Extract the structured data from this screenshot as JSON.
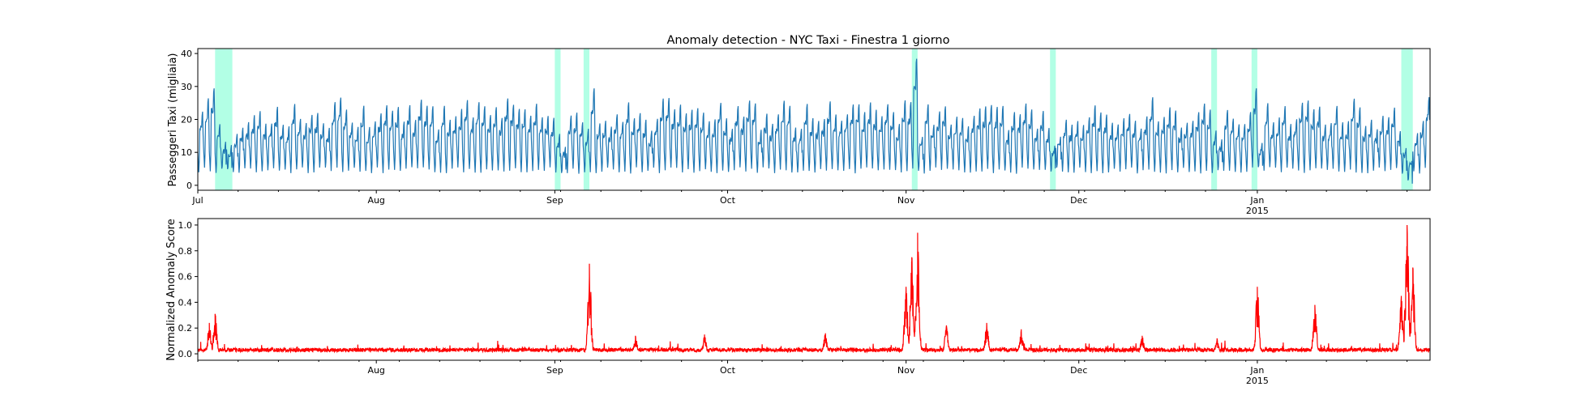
{
  "chart_data": [
    {
      "type": "line",
      "title": "Anomaly detection - NYC Taxi - Finestra 1 giorno",
      "ylabel": "Passeggeri Taxi (migliaia)",
      "xlabel": "",
      "xlim": [
        "2014-07-01",
        "2015-01-31"
      ],
      "ylim": [
        -1.5,
        41.5
      ],
      "yticks": [
        0,
        10,
        20,
        30,
        40
      ],
      "xticks": [
        {
          "date": "2014-07-01",
          "label": "Jul",
          "sub": ""
        },
        {
          "date": "2014-08-01",
          "label": "Aug",
          "sub": ""
        },
        {
          "date": "2014-09-01",
          "label": "Sep",
          "sub": ""
        },
        {
          "date": "2014-10-01",
          "label": "Oct",
          "sub": ""
        },
        {
          "date": "2014-11-01",
          "label": "Nov",
          "sub": ""
        },
        {
          "date": "2014-12-01",
          "label": "Dec",
          "sub": ""
        },
        {
          "date": "2015-01-01",
          "label": "Jan",
          "sub": "2015"
        }
      ],
      "line_color": "#1f77b4",
      "anomaly_color": "#7fffd4",
      "anomaly_windows": [
        [
          "2014-07-04",
          "2014-07-07"
        ],
        [
          "2014-09-01",
          "2014-09-02"
        ],
        [
          "2014-09-06",
          "2014-09-07"
        ],
        [
          "2014-11-02",
          "2014-11-03"
        ],
        [
          "2014-11-26",
          "2014-11-27"
        ],
        [
          "2014-12-24",
          "2014-12-25"
        ],
        [
          "2014-12-31",
          "2015-01-01"
        ],
        [
          "2015-01-26",
          "2015-01-28"
        ]
      ],
      "series": {
        "profile": "daily cycle, low ~2-4 overnight, peak ~18-28 evening",
        "peaks": [
          {
            "date": "2014-07-02",
            "value": 27
          },
          {
            "date": "2014-07-03",
            "value": 30
          },
          {
            "date": "2014-09-07",
            "value": 30
          },
          {
            "date": "2014-11-02",
            "value": 39
          },
          {
            "date": "2014-12-31",
            "value": 30
          },
          {
            "date": "2015-01-27",
            "value": 2
          }
        ]
      }
    },
    {
      "type": "line",
      "title": "",
      "ylabel": "Normalized Anomaly Score",
      "xlabel": "",
      "xlim": [
        "2014-07-01",
        "2015-01-31"
      ],
      "ylim": [
        -0.05,
        1.05
      ],
      "yticks": [
        "0.0",
        "0.2",
        "0.4",
        "0.6",
        "0.8",
        "1.0"
      ],
      "xticks": [
        {
          "date": "2014-08-01",
          "label": "Aug",
          "sub": ""
        },
        {
          "date": "2014-09-01",
          "label": "Sep",
          "sub": ""
        },
        {
          "date": "2014-10-01",
          "label": "Oct",
          "sub": ""
        },
        {
          "date": "2014-11-01",
          "label": "Nov",
          "sub": ""
        },
        {
          "date": "2014-12-01",
          "label": "Dec",
          "sub": ""
        },
        {
          "date": "2015-01-01",
          "label": "Jan",
          "sub": "2015"
        }
      ],
      "line_color": "#ff0000",
      "baseline": 0.03,
      "spikes": [
        {
          "date": "2014-07-03",
          "value": 0.24
        },
        {
          "date": "2014-07-04",
          "value": 0.31
        },
        {
          "date": "2014-09-07",
          "value": 0.7
        },
        {
          "date": "2014-09-15",
          "value": 0.14
        },
        {
          "date": "2014-09-27",
          "value": 0.15
        },
        {
          "date": "2014-10-18",
          "value": 0.16
        },
        {
          "date": "2014-11-01",
          "value": 0.52
        },
        {
          "date": "2014-11-02",
          "value": 0.75
        },
        {
          "date": "2014-11-03",
          "value": 0.94
        },
        {
          "date": "2014-11-08",
          "value": 0.22
        },
        {
          "date": "2014-11-15",
          "value": 0.24
        },
        {
          "date": "2014-11-21",
          "value": 0.19
        },
        {
          "date": "2014-12-12",
          "value": 0.14
        },
        {
          "date": "2014-12-25",
          "value": 0.12
        },
        {
          "date": "2015-01-01",
          "value": 0.52
        },
        {
          "date": "2015-01-11",
          "value": 0.38
        },
        {
          "date": "2015-01-26",
          "value": 0.45
        },
        {
          "date": "2015-01-27",
          "value": 1.0
        },
        {
          "date": "2015-01-28",
          "value": 0.67
        }
      ]
    }
  ]
}
